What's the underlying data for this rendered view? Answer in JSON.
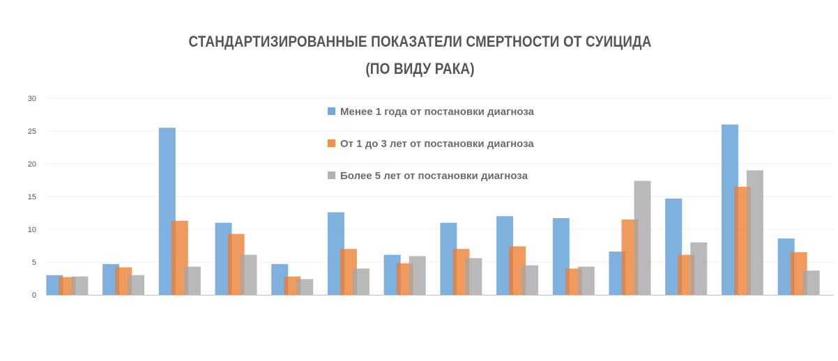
{
  "chart_data": {
    "type": "bar",
    "title": "СТАНДАРТИЗИРОВАННЫЕ ПОКАЗАТЕЛИ СМЕРТНОСТИ ОТ СУИЦИДА",
    "subtitle": "(ПО ВИДУ РАКА)",
    "xlabel": "",
    "ylabel": "",
    "ylim": [
      0,
      30
    ],
    "yticks": [
      "0",
      "5",
      "10",
      "15",
      "20",
      "25",
      "30"
    ],
    "grid": true,
    "legend_position": "top-center",
    "categories": [
      "",
      "",
      "",
      "",
      "",
      "",
      "",
      "",
      "",
      "",
      "",
      "",
      "",
      ""
    ],
    "series": [
      {
        "name": "Менее 1 года от постановки диагноза",
        "color": "#5b9bd5",
        "values": [
          3.0,
          4.7,
          25.5,
          11.0,
          4.7,
          12.6,
          6.1,
          11.0,
          12.0,
          11.7,
          6.6,
          14.7,
          26.0,
          8.6
        ]
      },
      {
        "name": "От 1 до 3 лет от постановки диагноза",
        "color": "#ed7d31",
        "values": [
          2.7,
          4.2,
          11.3,
          9.3,
          2.8,
          7.0,
          4.8,
          7.0,
          7.4,
          4.0,
          11.5,
          6.1,
          16.5,
          6.5
        ]
      },
      {
        "name": "Более 5 лет от постановки диагноза",
        "color": "#a5a5a5",
        "values": [
          2.8,
          3.0,
          4.3,
          6.1,
          2.4,
          4.0,
          5.9,
          5.6,
          4.5,
          4.3,
          17.4,
          8.0,
          19.0,
          3.7
        ]
      }
    ]
  }
}
